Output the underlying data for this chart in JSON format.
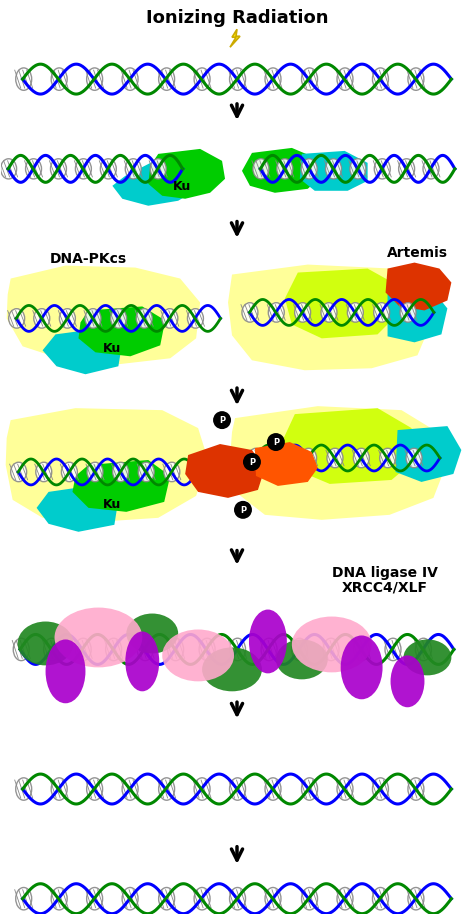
{
  "title": "Ionizing Radiation",
  "background_color": "#ffffff",
  "dna_blue": "#0000ff",
  "dna_green": "#008800",
  "dna_crosshatch": "#888888",
  "ku_cyan": "#00cccc",
  "ku_green": "#00cc00",
  "dnapkcs_yellow": "#ffff99",
  "artemis_orange": "#dd3300",
  "phospho_black": "#111111",
  "ligase_pink": "#ffaacc",
  "ligase_purple": "#aa00cc",
  "ligase_green": "#228822",
  "arrow_color": "#111111",
  "lightning_yellow": "#ffee00",
  "lightning_outline": "#ccaa00",
  "yg_color": "#ccff00",
  "labels": {
    "ionizing": "Ionizing Radiation",
    "artemis": "Artemis",
    "dnapkcs": "DNA-PKcs",
    "ku": "Ku",
    "dna_ligase": "DNA ligase IV",
    "xrcc4": "XRCC4/XLF"
  },
  "figsize": [
    4.74,
    9.15
  ],
  "dpi": 100
}
